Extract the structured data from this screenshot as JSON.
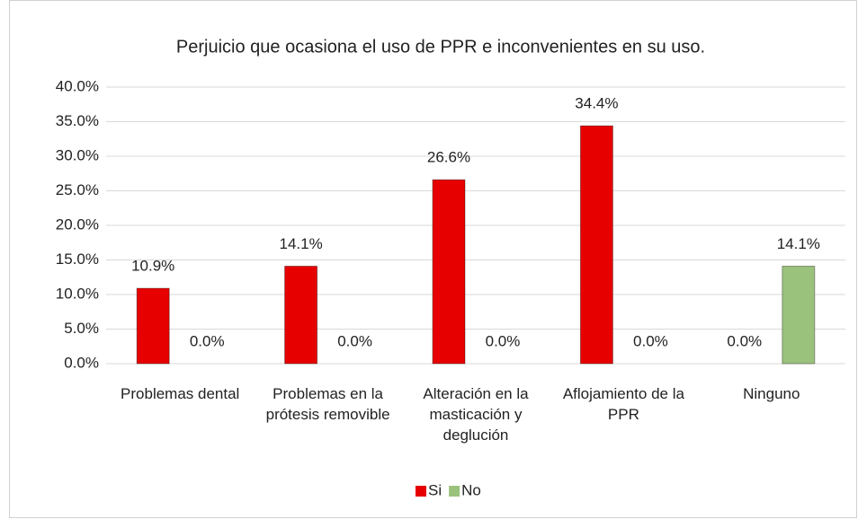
{
  "chart_data": {
    "type": "bar",
    "title": "Perjuicio que ocasiona el uso de PPR e inconvenientes en su uso.",
    "categories": [
      "Problemas dental",
      "Problemas en la prótesis removible",
      "Alteración en la masticación y deglución",
      "Aflojamiento de la PPR",
      "Ninguno"
    ],
    "series": [
      {
        "name": "Si",
        "color": "#e60000",
        "values": [
          10.9,
          14.1,
          26.6,
          34.4,
          0
        ],
        "value_labels": [
          "10.9%",
          "14.1%",
          "26.6%",
          "34.4%",
          "0.0%"
        ]
      },
      {
        "name": "No",
        "color": "#9bc27c",
        "values": [
          0,
          0,
          0,
          0,
          14.1
        ],
        "value_labels": [
          "0.0%",
          "0.0%",
          "0.0%",
          "0.0%",
          "14.1%"
        ]
      }
    ],
    "ylim": [
      0,
      40
    ],
    "yticks": [
      {
        "value": 0,
        "label": "0.0%"
      },
      {
        "value": 5,
        "label": "5.0%"
      },
      {
        "value": 10,
        "label": "10.0%"
      },
      {
        "value": 15,
        "label": "15.0%"
      },
      {
        "value": 20,
        "label": "20.0%"
      },
      {
        "value": 25,
        "label": "25.0%"
      },
      {
        "value": 30,
        "label": "30.0%"
      },
      {
        "value": 35,
        "label": "35.0%"
      },
      {
        "value": 40,
        "label": "40.0%"
      }
    ],
    "grid": true,
    "legend": "bottom"
  }
}
